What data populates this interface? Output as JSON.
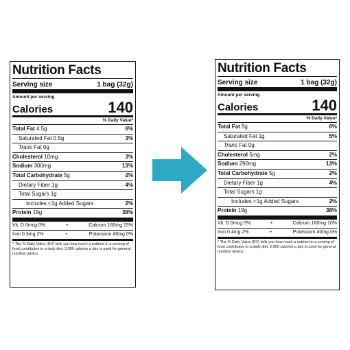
{
  "labels": [
    {
      "title": "Nutrition Facts",
      "serving_size_label": "Serving size",
      "serving_size_value": "1 bag (32g)",
      "amount_per_serving": "Amount per serving",
      "calories_label": "Calories",
      "calories_value": "140",
      "dv_header": "% Daily Value*",
      "total_fat": {
        "name": "Total Fat",
        "amt": "4.5g",
        "dv": "6%"
      },
      "saturated_fat": {
        "name": "Saturated Fat",
        "amt": "0.5g",
        "dv": "3%"
      },
      "trans_fat": {
        "name": "Trans",
        "rest": "Fat",
        "amt": "0g"
      },
      "cholesterol": {
        "name": "Cholesterol",
        "amt": "10mg",
        "dv": "3%"
      },
      "sodium": {
        "name": "Sodium",
        "amt": "300mg",
        "dv": "13%"
      },
      "total_carb": {
        "name": "Total Carbohydrate",
        "amt": "5g",
        "dv": "2%"
      },
      "fiber": {
        "name": "Dietary Fiber",
        "amt": "1g",
        "dv": "4%"
      },
      "total_sugars": {
        "name": "Total Sugars",
        "amt": "1g"
      },
      "added_sugars": {
        "name": "Includes <1g Added Sugars",
        "dv": "2%"
      },
      "protein": {
        "name": "Protein",
        "amt": "19g",
        "dv": "38%"
      },
      "vit_row1_left": "Vit. D 0mcg 0%",
      "vit_row1_sep": "•",
      "vit_row1_right": "Calcium 160mg 15%",
      "vit_row2_left": "Iron 0.3mg 2%",
      "vit_row2_sep": "•",
      "vit_row2_right": "Potassium 40mg 0%",
      "footnote": "* The % Daily Value (DV) tells you how much a nutrient in a serving of food contributes to a daily diet. 2,000 calories a day is used for general nutrition advice."
    },
    {
      "title": "Nutrition Facts",
      "serving_size_label": "Serving size",
      "serving_size_value": "1 bag (32g)",
      "amount_per_serving": "Amount per serving",
      "calories_label": "Calories",
      "calories_value": "140",
      "dv_header": "% Daily Value*",
      "total_fat": {
        "name": "Total Fat",
        "amt": "5g",
        "dv": "6%"
      },
      "saturated_fat": {
        "name": "Saturated Fat",
        "amt": "1g",
        "dv": "5%"
      },
      "trans_fat": {
        "name": "Trans",
        "rest": "Fat",
        "amt": "0g"
      },
      "cholesterol": {
        "name": "Cholesterol",
        "amt": "5mg",
        "dv": "2%"
      },
      "sodium": {
        "name": "Sodium",
        "amt": "290mg",
        "dv": "13%"
      },
      "total_carb": {
        "name": "Total Carbohydrate",
        "amt": "5g",
        "dv": "2%"
      },
      "fiber": {
        "name": "Dietary Fiber",
        "amt": "1g",
        "dv": "4%"
      },
      "total_sugars": {
        "name": "Total Sugars",
        "amt": "1g"
      },
      "added_sugars": {
        "name": "Includes <1g Added Sugars",
        "dv": "2%"
      },
      "protein": {
        "name": "Protein",
        "amt": "19g",
        "dv": "38%"
      },
      "vit_row1_left": "Vit. D 0mcg 0%",
      "vit_row1_sep": "•",
      "vit_row1_right": "Calcium 160mg 10%",
      "vit_row2_left": "Iron 0.4mg 2%",
      "vit_row2_sep": "•",
      "vit_row2_right": "Potassium 40mg 0%",
      "footnote": "* The % Daily Value (DV) tells you how much a nutrient in a serving of food contributes to a daily diet. 2,000 calories a day is used for general nutrition advice."
    }
  ],
  "arrow": {
    "icon": "arrow-right-icon",
    "color": "#2ea9c4"
  }
}
